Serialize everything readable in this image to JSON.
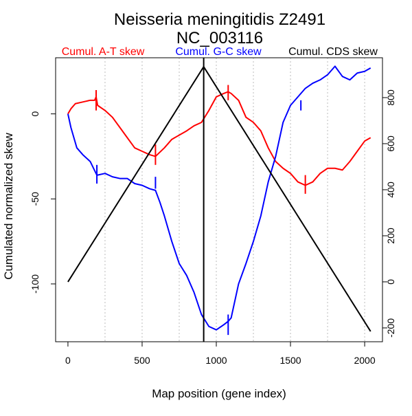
{
  "chart_data": {
    "type": "line",
    "title": "Neisseria meningitidis Z2491",
    "subtitle": "NC_003116",
    "xlabel": "Map position (gene index)",
    "ylabel": "Cumulated normalized skew",
    "xlim": [
      -83,
      2120
    ],
    "ylim_left": [
      -134,
      33
    ],
    "ylim_right": [
      -260,
      973
    ],
    "x_ticks": [
      0,
      500,
      1000,
      1500,
      2000
    ],
    "y_ticks_left": [
      -100,
      -50,
      0
    ],
    "y_ticks_right": [
      -200,
      0,
      200,
      400,
      600,
      800
    ],
    "x_grid": [
      250,
      500,
      750,
      1000,
      1250,
      1500,
      1750,
      2000
    ],
    "grid": "vertical dotted",
    "legend_placement": "top",
    "vertical_marker_x": 915,
    "series": [
      {
        "name": "Cumul. A-T skew",
        "color": "#ff0000",
        "axis": "left",
        "x": [
          0,
          20,
          50,
          100,
          150,
          180,
          190,
          200,
          250,
          300,
          350,
          400,
          450,
          500,
          550,
          590,
          650,
          700,
          800,
          850,
          900,
          950,
          1000,
          1050,
          1080,
          1100,
          1150,
          1200,
          1250,
          1300,
          1350,
          1400,
          1450,
          1500,
          1550,
          1600,
          1650,
          1700,
          1750,
          1800,
          1850,
          1900,
          1950,
          2000,
          2040
        ],
        "y": [
          0,
          3,
          6,
          7,
          8,
          8,
          10,
          5,
          2,
          -2,
          -8,
          -14,
          -20,
          -22,
          -24,
          -25,
          -20,
          -15,
          -10,
          -7,
          -5,
          2,
          10,
          12,
          13,
          12,
          8,
          -2,
          -5,
          -10,
          -20,
          -28,
          -32,
          -35,
          -40,
          -42,
          -40,
          -35,
          -32,
          -32,
          -33,
          -28,
          -22,
          -16,
          -14
        ],
        "spikes": [
          {
            "x": 190,
            "y1": 2,
            "y2": 14
          },
          {
            "x": 590,
            "y1": -30,
            "y2": -18
          },
          {
            "x": 1080,
            "y1": 8,
            "y2": 17
          },
          {
            "x": 1600,
            "y1": -47,
            "y2": -36
          }
        ]
      },
      {
        "name": "Cumul. G-C skew",
        "color": "#0000ff",
        "axis": "left",
        "x": [
          0,
          20,
          60,
          100,
          150,
          195,
          200,
          250,
          300,
          350,
          400,
          450,
          500,
          550,
          590,
          620,
          650,
          700,
          750,
          800,
          850,
          900,
          950,
          1000,
          1050,
          1080,
          1100,
          1150,
          1200,
          1250,
          1300,
          1350,
          1400,
          1450,
          1500,
          1550,
          1600,
          1650,
          1700,
          1750,
          1800,
          1850,
          1900,
          1950,
          2000,
          2040
        ],
        "y": [
          0,
          -8,
          -20,
          -24,
          -28,
          -36,
          -36,
          -35,
          -37,
          -38,
          -38,
          -41,
          -42,
          -44,
          -45,
          -52,
          -60,
          -75,
          -88,
          -95,
          -105,
          -118,
          -125,
          -127,
          -124,
          -122,
          -120,
          -100,
          -88,
          -75,
          -60,
          -40,
          -25,
          -5,
          5,
          10,
          15,
          18,
          20,
          23,
          28,
          22,
          20,
          24,
          25,
          27
        ],
        "spikes": [
          {
            "x": 195,
            "y1": -41,
            "y2": -30
          },
          {
            "x": 590,
            "y1": -44,
            "y2": -37
          },
          {
            "x": 1080,
            "y1": -130,
            "y2": -118
          },
          {
            "x": 1570,
            "y1": 2,
            "y2": 8
          }
        ]
      },
      {
        "name": "Cumul. CDS skew",
        "color": "#000000",
        "axis": "right",
        "x": [
          0,
          915,
          2040
        ],
        "y": [
          0,
          934,
          -215
        ]
      }
    ]
  }
}
